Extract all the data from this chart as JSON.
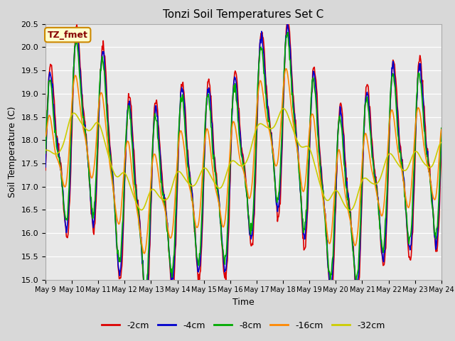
{
  "title": "Tonzi Soil Temperatures Set C",
  "xlabel": "Time",
  "ylabel": "Soil Temperature (C)",
  "ylim": [
    15.0,
    20.5
  ],
  "annotation_text": "TZ_fmet",
  "annotation_bg": "#ffffcc",
  "annotation_border": "#cc8800",
  "series_colors": {
    "-2cm": "#dd0000",
    "-4cm": "#0000cc",
    "-8cm": "#00aa00",
    "-16cm": "#ff8800",
    "-32cm": "#cccc00"
  },
  "x_tick_labels": [
    "May 9",
    "May 10",
    "May 11",
    "May 12",
    "May 13",
    "May 14",
    "May 15",
    "May 16",
    "May 17",
    "May 18",
    "May 19",
    "May 20",
    "May 21",
    "May 22",
    "May 23",
    "May 24"
  ],
  "plot_bg": "#e8e8e8",
  "grid_color": "#ffffff",
  "linewidth": 1.2,
  "fig_bg": "#d8d8d8"
}
